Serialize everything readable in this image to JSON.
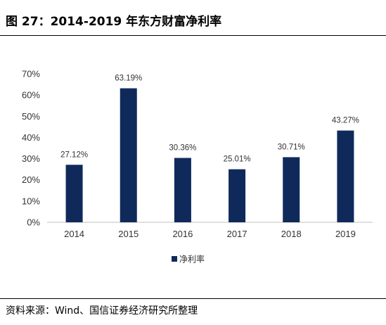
{
  "figure": {
    "title": "图 27：2014-2019 年东方财富净利率",
    "source": "资料来源：Wind、国信证券经济研究所整理"
  },
  "colors": {
    "bar": "#0f2a5a",
    "axis": "#bfbfbf"
  },
  "chart_data": {
    "type": "bar",
    "categories": [
      "2014",
      "2015",
      "2016",
      "2017",
      "2018",
      "2019"
    ],
    "series": [
      {
        "name": "净利率",
        "values": [
          27.12,
          63.19,
          30.36,
          25.01,
          30.71,
          43.27
        ],
        "labels": [
          "27.12%",
          "63.19%",
          "30.36%",
          "25.01%",
          "30.71%",
          "43.27%"
        ]
      }
    ],
    "ylim": [
      0,
      70
    ],
    "yticks": [
      "0%",
      "10%",
      "20%",
      "30%",
      "40%",
      "50%",
      "60%",
      "70%"
    ],
    "grid": false,
    "legend": "bottom-center"
  }
}
